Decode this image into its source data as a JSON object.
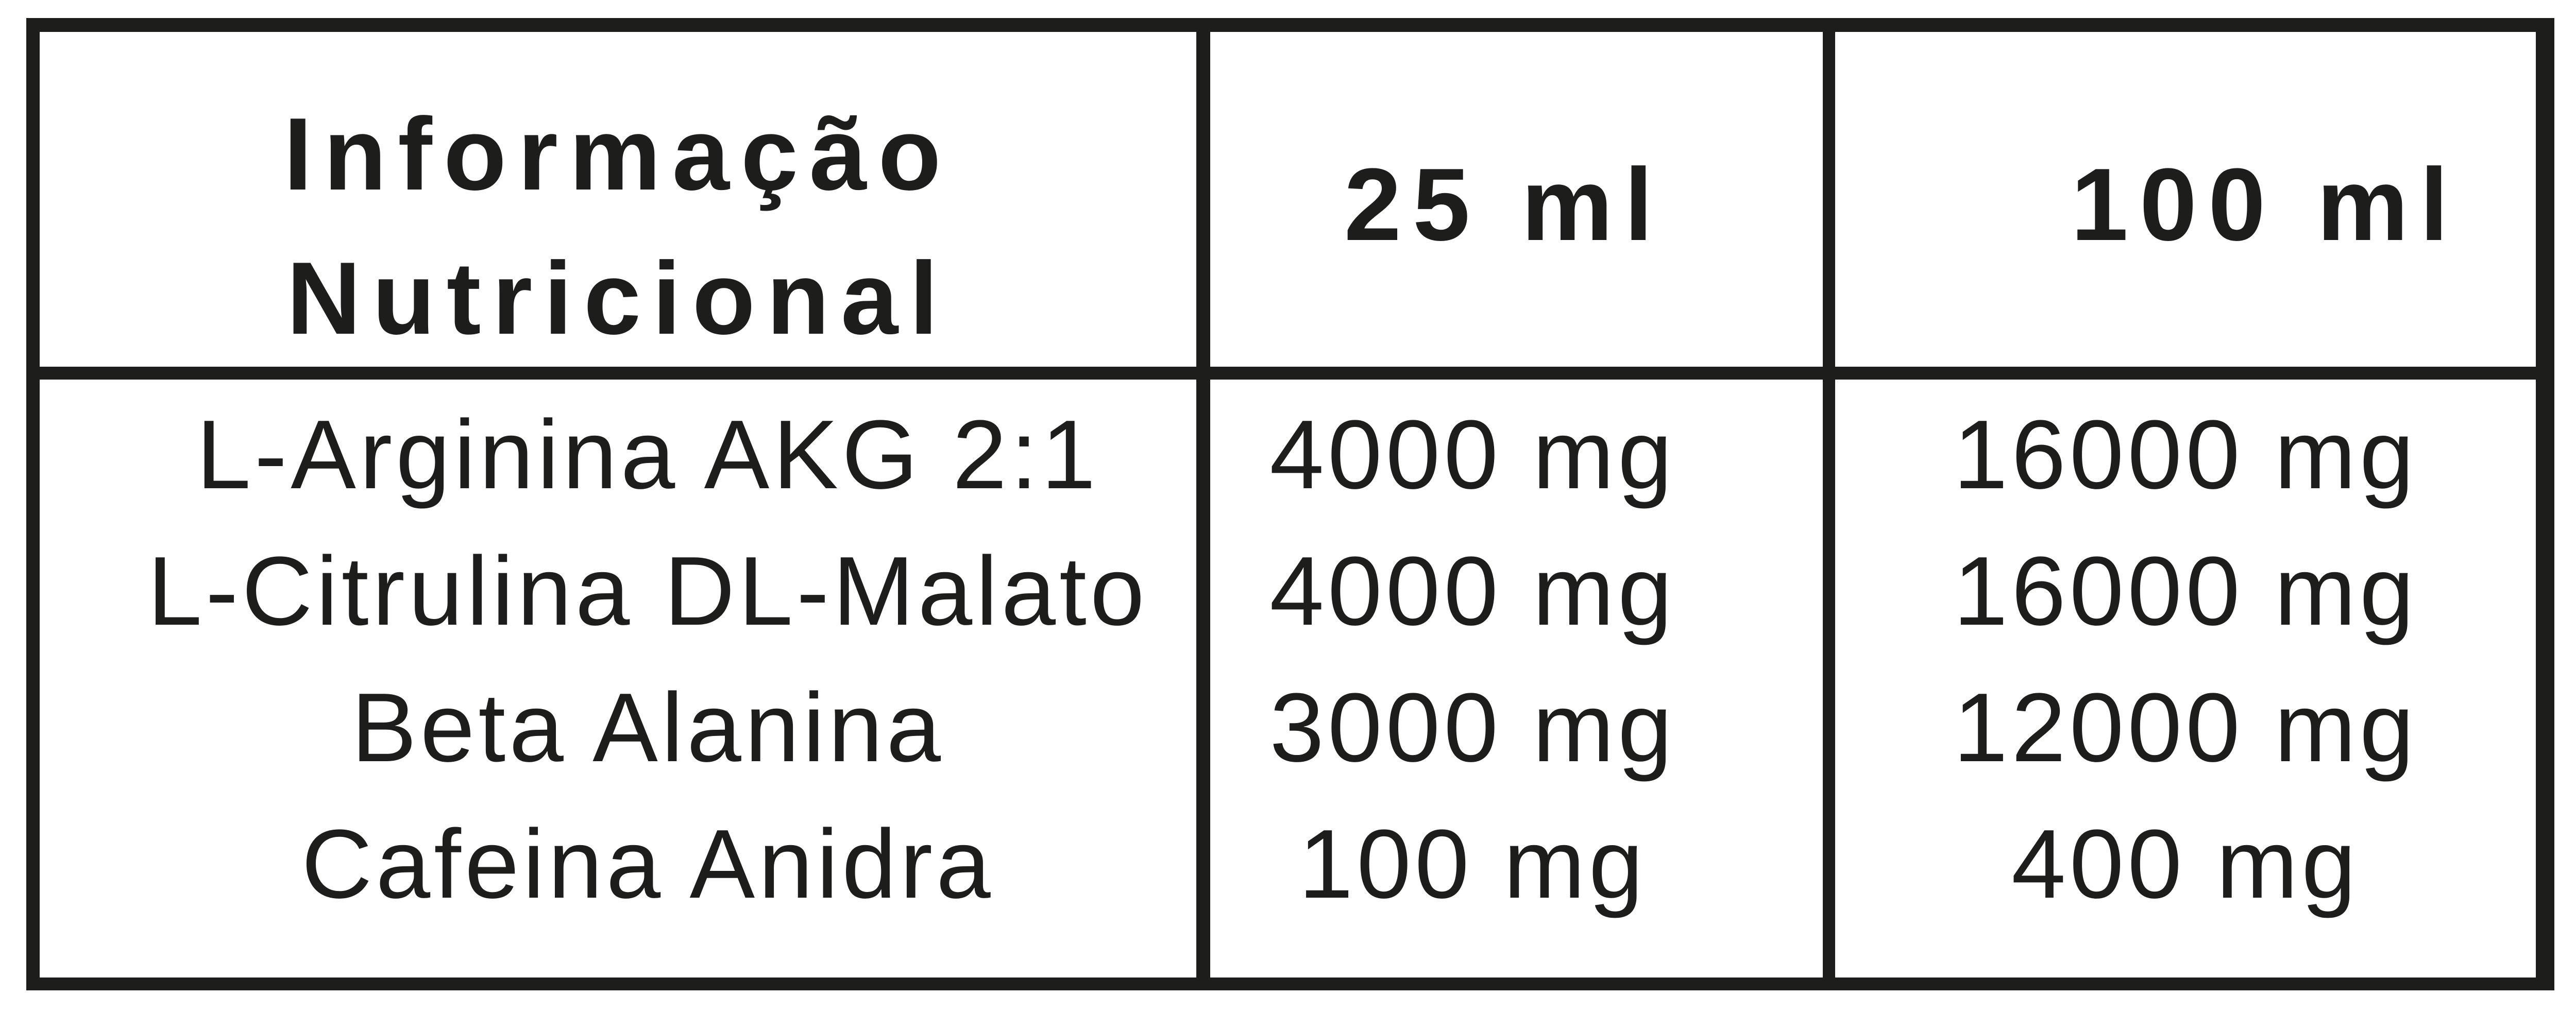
{
  "table": {
    "header": {
      "title_lines": [
        "Informação",
        "Nutricional"
      ],
      "col_25ml": "25 ml",
      "col_100ml": "100 ml"
    },
    "rows": [
      {
        "name": "L-Arginina AKG 2:1",
        "per_25ml": "4000 mg",
        "per_100ml": "16000 mg"
      },
      {
        "name": "L-Citrulina DL-Malato",
        "per_25ml": "4000 mg",
        "per_100ml": "16000 mg"
      },
      {
        "name": "Beta Alanina",
        "per_25ml": "3000 mg",
        "per_100ml": "12000 mg"
      },
      {
        "name": "Cafeina Anidra",
        "per_25ml": "100 mg",
        "per_100ml": "400 mg"
      }
    ],
    "colors": {
      "ink": "#1d1d1b",
      "background": "#ffffff"
    }
  }
}
